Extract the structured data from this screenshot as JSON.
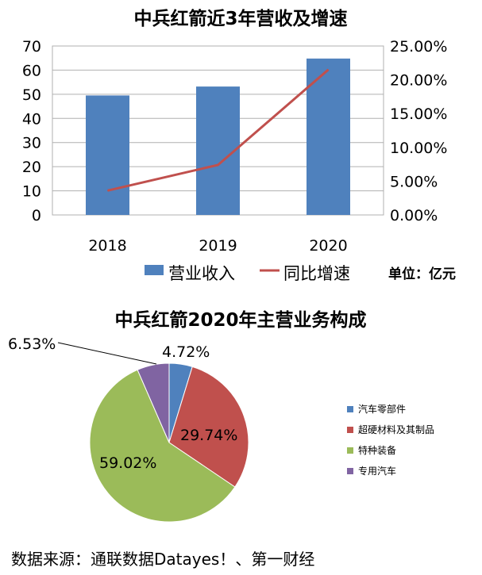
{
  "chart_data": [
    {
      "type": "bar",
      "title": "中兵红箭近3年营收及增速",
      "unit_note": "单位：亿元",
      "categories": [
        "2018",
        "2019",
        "2020"
      ],
      "series": [
        {
          "name": "营业收入",
          "type": "bar",
          "axis": "left",
          "values": [
            49.5,
            53.2,
            64.8
          ],
          "color": "#4f81bd"
        },
        {
          "name": "同比增速",
          "type": "line",
          "axis": "right",
          "values": [
            3.6,
            7.4,
            21.5
          ],
          "color": "#c0504d"
        }
      ],
      "ylim_left": [
        0,
        70
      ],
      "ylim_right": [
        0,
        25
      ],
      "left_ticks": [
        "0",
        "10",
        "20",
        "30",
        "40",
        "50",
        "60",
        "70"
      ],
      "right_ticks": [
        "0.00%",
        "5.00%",
        "10.00%",
        "15.00%",
        "20.00%",
        "25.00%"
      ],
      "grid": true,
      "legend_position": "bottom"
    },
    {
      "type": "pie",
      "title": "中兵红箭2020年主营业务构成",
      "slices": [
        {
          "name": "汽车零部件",
          "value": 4.72,
          "label": "4.72%",
          "color": "#4f81bd"
        },
        {
          "name": "超硬材料及其制品",
          "value": 29.74,
          "label": "29.74%",
          "color": "#c0504d"
        },
        {
          "name": "特种装备",
          "value": 59.02,
          "label": "59.02%",
          "color": "#9bbb59"
        },
        {
          "name": "专用汽车",
          "value": 6.53,
          "label": "6.53%",
          "color": "#8064a2"
        }
      ],
      "legend_position": "right"
    }
  ],
  "source_note": "数据来源：通联数据Datayes！、第一财经"
}
